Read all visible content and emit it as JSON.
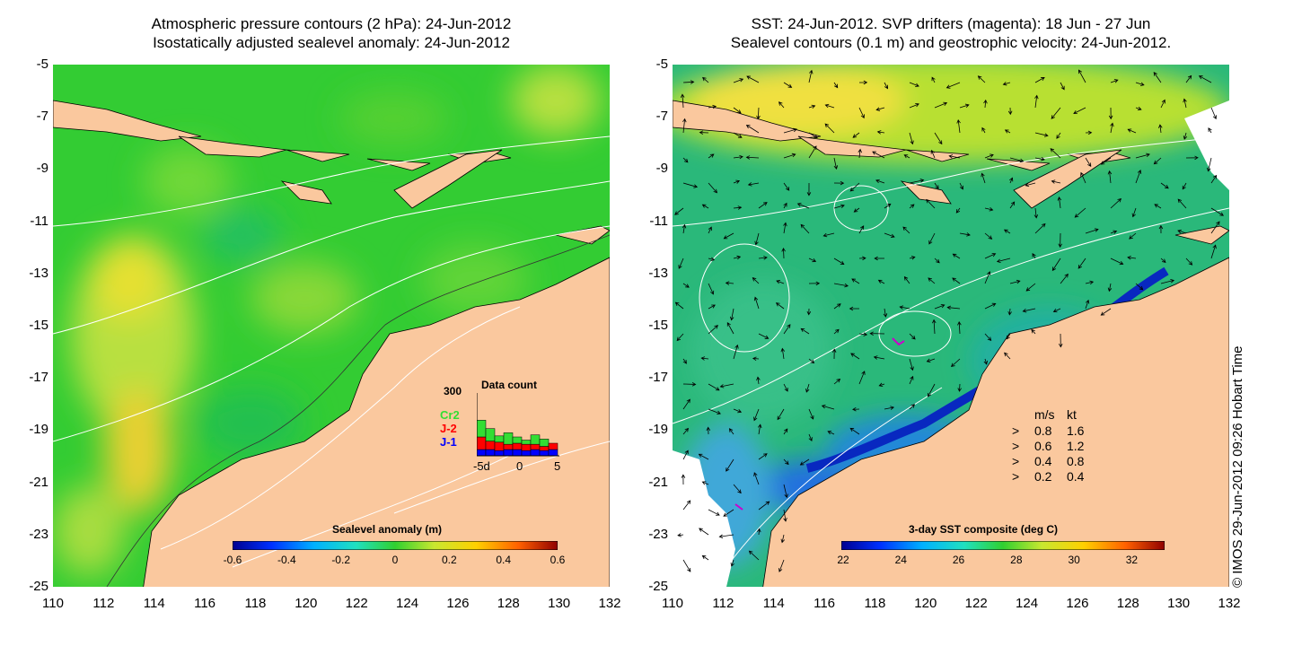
{
  "left_panel": {
    "title_line1": "Atmospheric pressure contours (2 hPa): 24-Jun-2012",
    "title_line2": "Isostatically adjusted sealevel anomaly: 24-Jun-2012",
    "colorbar": {
      "label": "Sealevel anomaly (m)",
      "ticks": [
        "-0.6",
        "-0.4",
        "-0.2",
        "0",
        "0.2",
        "0.4",
        "0.6"
      ]
    },
    "data_count": {
      "title": "Data count",
      "y_max_label": "300",
      "x_tick_labels": [
        "-5d",
        "0",
        "5"
      ],
      "legend": [
        {
          "label": "Cr2",
          "color": "#33dd33"
        },
        {
          "label": "J-2",
          "color": "#ff0000"
        },
        {
          "label": "J-1",
          "color": "#0000ff"
        }
      ],
      "bars": [
        {
          "day": -5,
          "j1": 30,
          "j2": 60,
          "cr2": 80
        },
        {
          "day": -4,
          "j1": 30,
          "j2": 40,
          "cr2": 60
        },
        {
          "day": -3,
          "j1": 25,
          "j2": 40,
          "cr2": 30
        },
        {
          "day": -2,
          "j1": 30,
          "j2": 25,
          "cr2": 55
        },
        {
          "day": -1,
          "j1": 30,
          "j2": 30,
          "cr2": 30
        },
        {
          "day": 0,
          "j1": 25,
          "j2": 30,
          "cr2": 20
        },
        {
          "day": 1,
          "j1": 30,
          "j2": 25,
          "cr2": 45
        },
        {
          "day": 2,
          "j1": 25,
          "j2": 20,
          "cr2": 35
        },
        {
          "day": 3,
          "j1": 30,
          "j2": 30,
          "cr2": 0
        }
      ]
    }
  },
  "right_panel": {
    "title_line1": "SST: 24-Jun-2012. SVP drifters (magenta): 18 Jun - 27 Jun",
    "title_line2": "Sealevel contours (0.1 m) and geostrophic velocity: 24-Jun-2012.",
    "colorbar": {
      "label": "3-day SST composite (deg C)",
      "ticks": [
        "22",
        "24",
        "26",
        "28",
        "30",
        "32"
      ]
    },
    "velocity_legend": {
      "header_ms": "m/s",
      "header_kt": "kt",
      "rows": [
        {
          "ms": "0.8",
          "kt": "1.6"
        },
        {
          "ms": "0.6",
          "kt": "1.2"
        },
        {
          "ms": "0.4",
          "kt": "0.8"
        },
        {
          "ms": "0.2",
          "kt": "0.4"
        }
      ]
    }
  },
  "axes": {
    "y_ticks": [
      "-5",
      "-7",
      "-9",
      "-11",
      "-13",
      "-15",
      "-17",
      "-19",
      "-21",
      "-23",
      "-25"
    ],
    "x_ticks": [
      "110",
      "112",
      "114",
      "116",
      "118",
      "120",
      "122",
      "124",
      "126",
      "128",
      "130",
      "132"
    ]
  },
  "footer": "© IMOS 29-Jun-2012 09:26 Hobart Time",
  "colors": {
    "land": "#fac89e",
    "sla_base": "#33cc33",
    "sst_base": "#2ab87a"
  }
}
